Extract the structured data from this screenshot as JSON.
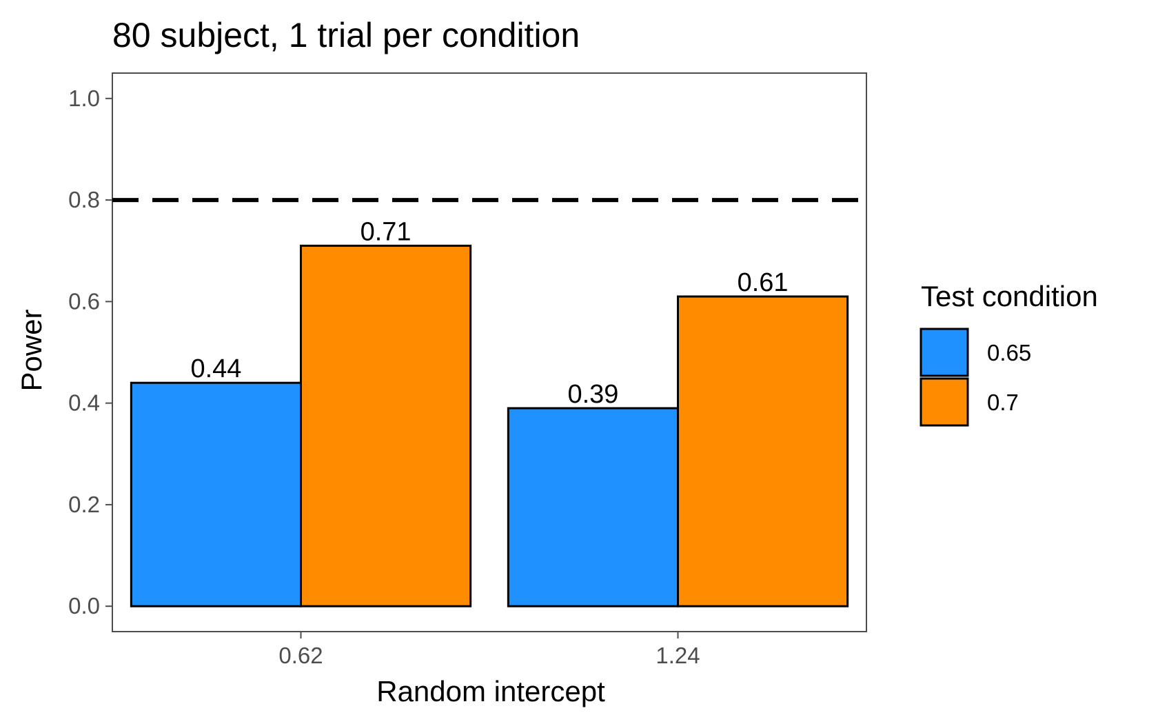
{
  "chart_data": {
    "type": "bar",
    "title": "80 subject, 1 trial per condition",
    "xlabel": "Random intercept",
    "ylabel": "Power",
    "categories": [
      "0.62",
      "1.24"
    ],
    "series": [
      {
        "name": "0.65",
        "values": [
          0.44,
          0.39
        ],
        "labels": [
          "0.44",
          "0.39"
        ],
        "color": "#1e90ff"
      },
      {
        "name": "0.7",
        "values": [
          0.71,
          0.61
        ],
        "labels": [
          "0.71",
          "0.61"
        ],
        "color": "#ff8c00"
      }
    ],
    "ylim": [
      -0.05,
      1.05
    ],
    "yticks": [
      0.0,
      0.2,
      0.4,
      0.6,
      0.8,
      1.0
    ],
    "ytick_labels": [
      "0.0",
      "0.2",
      "0.4",
      "0.6",
      "0.8",
      "1.0"
    ],
    "reference_line": {
      "value": 0.8,
      "style": "dashed",
      "color": "#000000"
    },
    "legend": {
      "title": "Test condition",
      "placement": "right"
    },
    "grid": false
  }
}
